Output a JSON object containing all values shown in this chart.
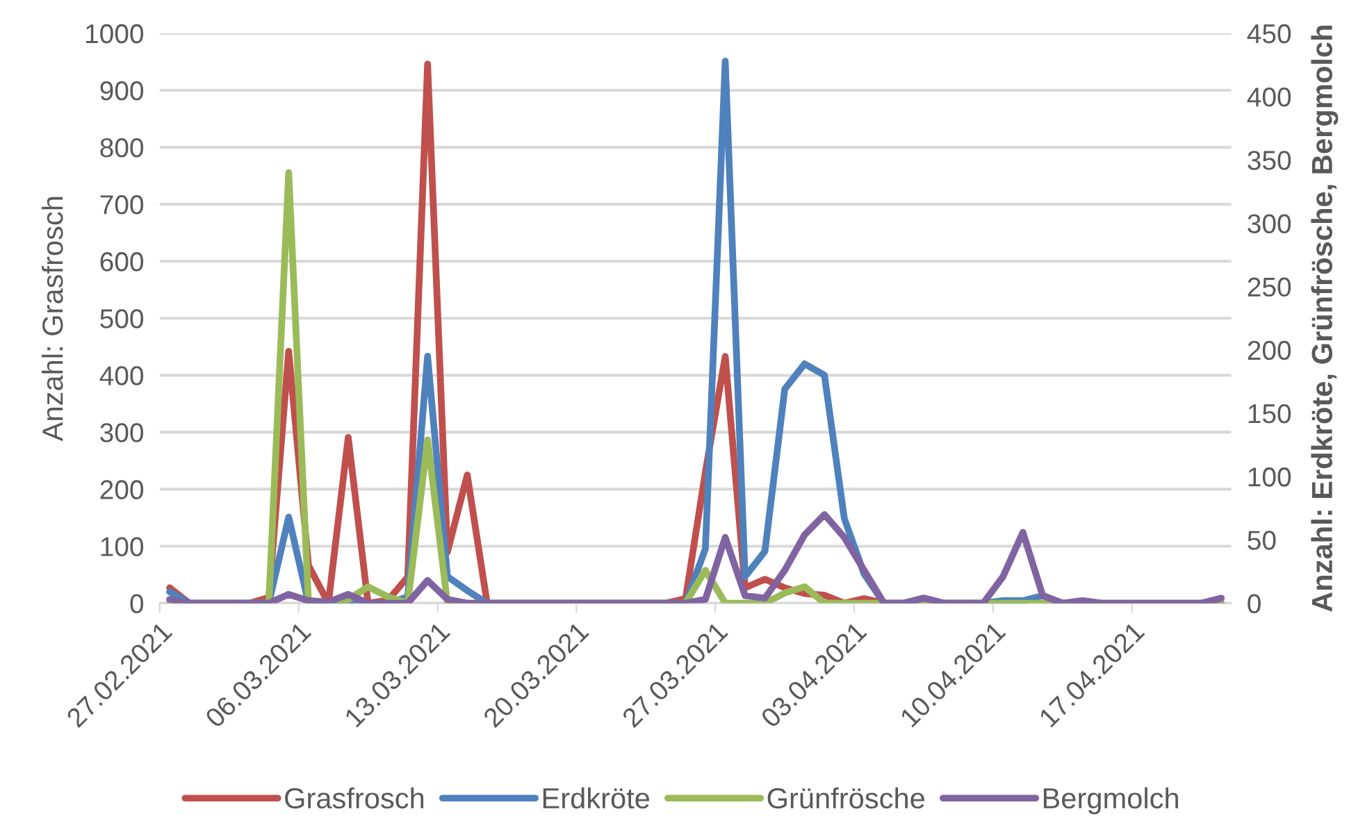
{
  "chart_data": {
    "type": "line",
    "ylabel": "Anzahl: Grasfrosch",
    "y2label": "Anzahl: Erdkröte, Grünfrösche, Bergmolch",
    "x": [
      "2021-02-27",
      "2021-02-28",
      "2021-03-01",
      "2021-03-02",
      "2021-03-03",
      "2021-03-04",
      "2021-03-05",
      "2021-03-06",
      "2021-03-07",
      "2021-03-08",
      "2021-03-09",
      "2021-03-10",
      "2021-03-11",
      "2021-03-12",
      "2021-03-13",
      "2021-03-14",
      "2021-03-15",
      "2021-03-16",
      "2021-03-17",
      "2021-03-18",
      "2021-03-19",
      "2021-03-20",
      "2021-03-21",
      "2021-03-22",
      "2021-03-23",
      "2021-03-24",
      "2021-03-25",
      "2021-03-26",
      "2021-03-27",
      "2021-03-28",
      "2021-03-29",
      "2021-03-30",
      "2021-03-31",
      "2021-04-01",
      "2021-04-02",
      "2021-04-03",
      "2021-04-04",
      "2021-04-05",
      "2021-04-06",
      "2021-04-07",
      "2021-04-08",
      "2021-04-09",
      "2021-04-10",
      "2021-04-11",
      "2021-04-12",
      "2021-04-13",
      "2021-04-14",
      "2021-04-15",
      "2021-04-16",
      "2021-04-17",
      "2021-04-18",
      "2021-04-19",
      "2021-04-20",
      "2021-04-21"
    ],
    "series": [
      {
        "name": "Grasfrosch",
        "color": "#c0504d",
        "values": [
          27,
          0,
          0,
          0,
          0,
          10,
          442,
          66,
          0,
          291,
          0,
          5,
          46,
          946,
          90,
          225,
          0,
          0,
          0,
          0,
          0,
          0,
          0,
          0,
          0,
          0,
          8,
          230,
          433,
          27,
          42,
          27,
          17,
          14,
          0,
          8,
          0,
          0,
          0,
          0,
          0,
          0,
          0,
          0,
          0,
          0,
          null,
          null,
          null,
          null,
          null,
          null,
          null,
          null
        ]
      },
      {
        "name": "Erdkröte",
        "color": "#4f81bd",
        "axis": "y2",
        "values": [
          9,
          0,
          0,
          0,
          0,
          0,
          68,
          0,
          0,
          0,
          0,
          0,
          5,
          195,
          21,
          10,
          0,
          0,
          0,
          0,
          0,
          0,
          0,
          0,
          0,
          0,
          0,
          43,
          428,
          21,
          41,
          169,
          189,
          180,
          67,
          23,
          0,
          0,
          4,
          0,
          0,
          0,
          2,
          2,
          6,
          0,
          0,
          0,
          0,
          0,
          0,
          0,
          0,
          0
        ]
      },
      {
        "name": "Grünfrösche",
        "color": "#9bbb59",
        "axis": "y2",
        "values": [
          0,
          0,
          0,
          0,
          0,
          0,
          340,
          0,
          0,
          3,
          13,
          5,
          0,
          129,
          0,
          0,
          0,
          0,
          0,
          0,
          0,
          0,
          0,
          0,
          0,
          0,
          0,
          26,
          0,
          0,
          0,
          8,
          13,
          0,
          0,
          0,
          0,
          0,
          0,
          0,
          0,
          0,
          0,
          0,
          0,
          0,
          0,
          0,
          0,
          0,
          0,
          0,
          0,
          0
        ]
      },
      {
        "name": "Bergmolch",
        "color": "#8064a2",
        "axis": "y2",
        "values": [
          3,
          0,
          0,
          0,
          0,
          0,
          7,
          2,
          1,
          7,
          0,
          0,
          0,
          18,
          3,
          0,
          0,
          0,
          0,
          0,
          0,
          0,
          0,
          0,
          0,
          0,
          0,
          3,
          52,
          6,
          4,
          26,
          54,
          70,
          52,
          26,
          0,
          0,
          4,
          0,
          0,
          0,
          21,
          56,
          6,
          0,
          2,
          0,
          0,
          0,
          0,
          0,
          0,
          4
        ]
      }
    ],
    "xlim": [
      "2021-02-26T12:00",
      "2021-04-21T12:00"
    ],
    "xticks": [
      {
        "value": "2021-02-26T12:00",
        "label": "27.02.2021"
      },
      {
        "value": "2021-03-05T12:00",
        "label": "06.03.2021"
      },
      {
        "value": "2021-03-12T12:00",
        "label": "13.03.2021"
      },
      {
        "value": "2021-03-19T12:00",
        "label": "20.03.2021"
      },
      {
        "value": "2021-03-26T12:00",
        "label": "27.03.2021"
      },
      {
        "value": "2021-04-02T12:00",
        "label": "03.04.2021"
      },
      {
        "value": "2021-04-09T12:00",
        "label": "10.04.2021"
      },
      {
        "value": "2021-04-16T12:00",
        "label": "17.04.2021"
      }
    ],
    "ylim": [
      0,
      1000
    ],
    "yticks": [
      0,
      100,
      200,
      300,
      400,
      500,
      600,
      700,
      800,
      900,
      1000
    ],
    "y2lim": [
      0,
      450
    ],
    "y2ticks": [
      0,
      50,
      100,
      150,
      200,
      250,
      300,
      350,
      400,
      450
    ],
    "grid": "y",
    "legend": "bottom",
    "marker": "none",
    "line_style": "solid"
  }
}
